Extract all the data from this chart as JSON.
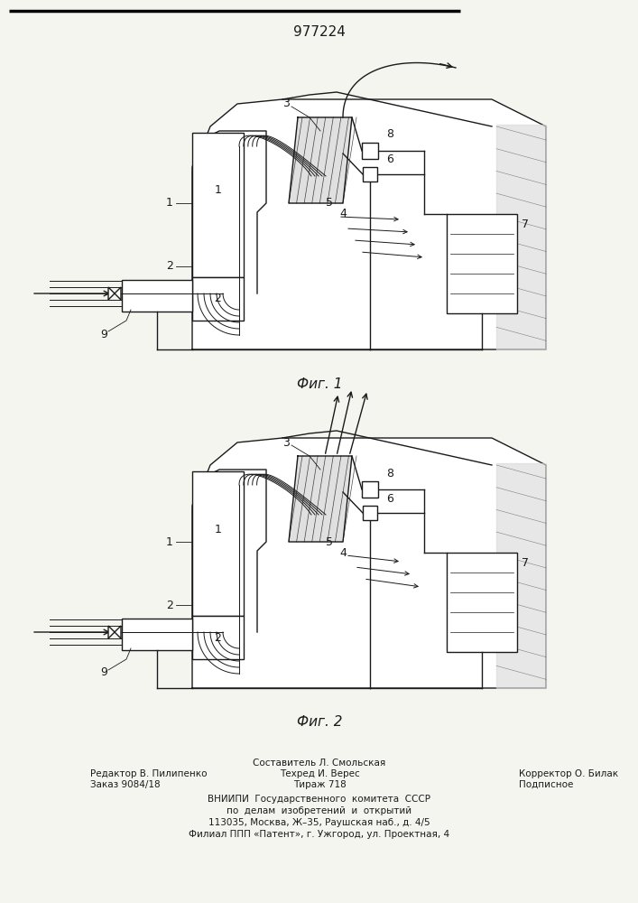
{
  "patent_number": "977224",
  "fig1_caption": "Фиг. 1",
  "fig2_caption": "Фиг. 2",
  "footer_line1_left": "Редактор В. Пилипенко",
  "footer_line2_left": "Заказ 9084/18",
  "footer_line1_center": "Составитель Л. Смольская",
  "footer_line2_center": "Техред И. Верес",
  "footer_line3_center": "Тираж 718",
  "footer_line2_right": "Корректор О. Билак",
  "footer_line3_right": "Подписное",
  "footer_vniiipi_1": "ВНИИПИ  Государственного  комитета  СССР",
  "footer_vniiipi_2": "по  делам  изобретений  и  открытий",
  "footer_vniiipi_3": "113035, Москва, Ж–35, Раушская наб., д. 4/5",
  "footer_vniiipi_4": "Филиал ППП «Патент», г. Ужгород, ул. Проектная, 4",
  "bg_color": "#f5f5f0"
}
